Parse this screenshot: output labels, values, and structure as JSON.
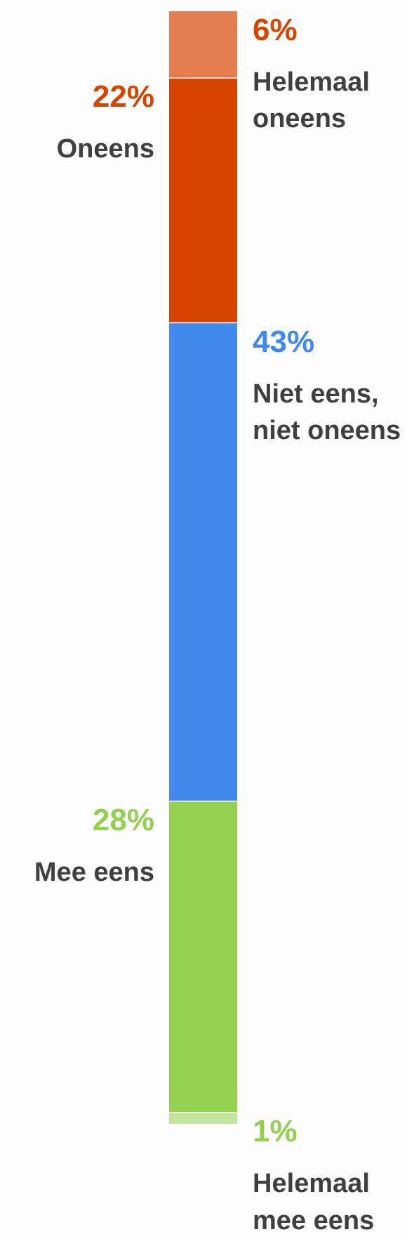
{
  "chart_data": {
    "type": "bar",
    "orientation": "vertical-stacked",
    "segments": [
      {
        "name": "Helemaal oneens",
        "value": 6,
        "value_label": "6%",
        "color": "#e37d50",
        "value_color": "#d64500",
        "label_side": "right"
      },
      {
        "name": "Oneens",
        "value": 22,
        "value_label": "22%",
        "color": "#d64500",
        "value_color": "#d64500",
        "label_side": "left"
      },
      {
        "name": "Niet eens, niet oneens",
        "value": 43,
        "value_label": "43%",
        "color": "#4289ec",
        "value_color": "#4289ec",
        "label_side": "right"
      },
      {
        "name": "Mee eens",
        "value": 28,
        "value_label": "28%",
        "color": "#93d050",
        "value_color": "#93d050",
        "label_side": "left"
      },
      {
        "name": "Helemaal mee eens",
        "value": 1,
        "value_label": "1%",
        "color": "#c2e59b",
        "value_color": "#93d050",
        "label_side": "right"
      }
    ],
    "title": "",
    "legend": "none"
  }
}
